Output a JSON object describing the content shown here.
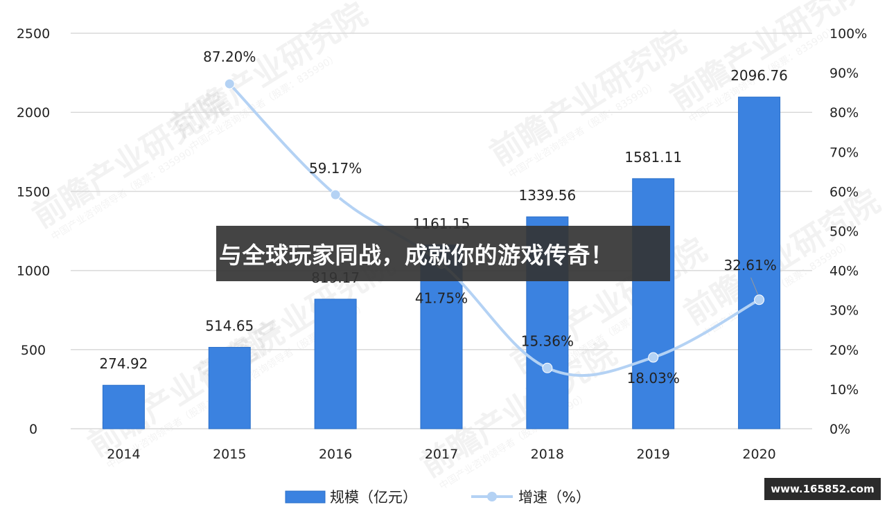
{
  "chart_data": {
    "type": "bar+line",
    "categories": [
      "2014",
      "2015",
      "2016",
      "2017",
      "2018",
      "2019",
      "2020"
    ],
    "series": [
      {
        "name": "规模（亿元）",
        "type": "bar",
        "axis": "left",
        "values": [
          274.92,
          514.65,
          819.17,
          1161.15,
          1339.56,
          1581.11,
          2096.76
        ],
        "labels": [
          "274.92",
          "514.65",
          "819.17",
          "1161.15",
          "1339.56",
          "1581.11",
          "2096.76"
        ]
      },
      {
        "name": "增速（%）",
        "type": "line",
        "axis": "right",
        "x": [
          "2015",
          "2016",
          "2017",
          "2018",
          "2019",
          "2020"
        ],
        "values": [
          87.2,
          59.17,
          41.75,
          15.36,
          18.03,
          32.61
        ],
        "labels": [
          "87.20%",
          "59.17%",
          "41.75%",
          "15.36%",
          "18.03%",
          "32.61%"
        ]
      }
    ],
    "ylim_left": [
      0,
      2500
    ],
    "yticks_left": [
      "0",
      "500",
      "1000",
      "1500",
      "2000",
      "2500"
    ],
    "ylim_right": [
      0,
      100
    ],
    "yticks_right": [
      "0%",
      "10%",
      "20%",
      "30%",
      "40%",
      "50%",
      "60%",
      "70%",
      "80%",
      "90%",
      "100%"
    ],
    "grid": true,
    "legend_position": "bottom",
    "colors": {
      "bar": "#3b82e0",
      "line": "#b4d2f4",
      "grid": "#d9d9d9",
      "text": "#222222"
    }
  },
  "watermark": {
    "text": "前瞻产业研究院",
    "subtext": "中国产业咨询领导者（股票：835990）"
  },
  "overlay": {
    "banner_text": "与全球玩家同战，成就你的游戏传奇！",
    "site_badge": "www.165852.com"
  }
}
